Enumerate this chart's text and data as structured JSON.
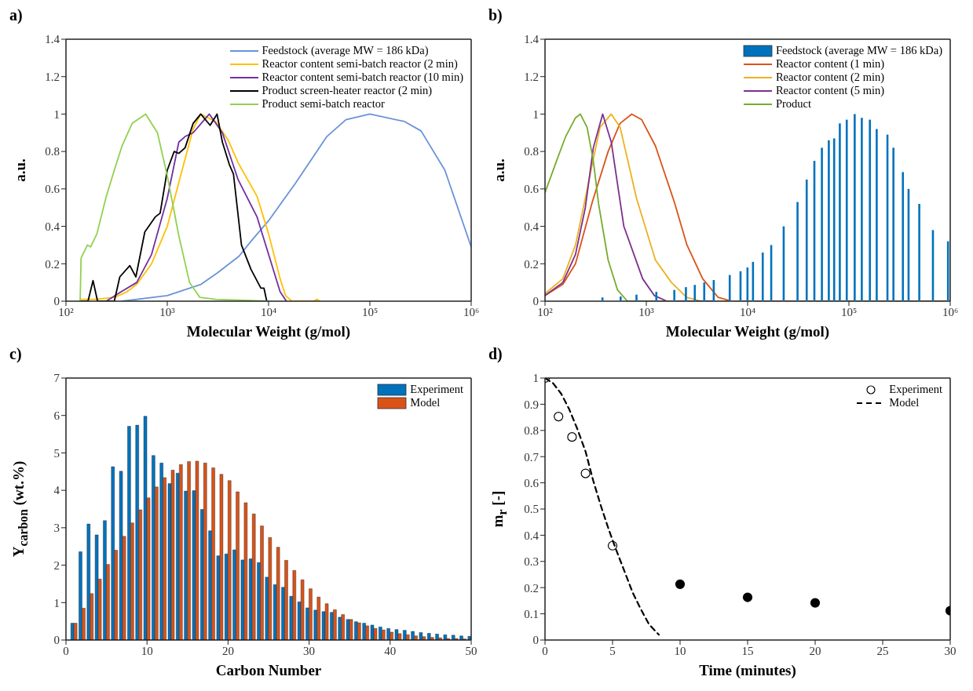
{
  "chart_data": [
    {
      "type": "line",
      "title": "a)",
      "xlabel": "Molecular Weight (g/mol)",
      "ylabel": "a.u.",
      "log": "x",
      "xlim": [
        100,
        1000000
      ],
      "xticks": [
        {
          "value": 100,
          "label": "10²"
        },
        {
          "value": 1000,
          "label": "10³"
        },
        {
          "value": 10000,
          "label": "10⁴"
        },
        {
          "value": 100000,
          "label": "10⁵"
        },
        {
          "value": 1000000,
          "label": "10⁶"
        }
      ],
      "ylim": [
        0,
        1.4
      ],
      "yticks": [
        0,
        0.2,
        0.4,
        0.6,
        0.8,
        1,
        1.2,
        1.4
      ],
      "legend": "top right",
      "series": [
        {
          "name": "Feedstock (average MW = 186 kDa)",
          "color": "#6a93d8",
          "x": [
            360,
            1000,
            2150,
            3100,
            5100,
            6700,
            10000,
            18400,
            37600,
            58000,
            100000,
            220000,
            320000,
            550000,
            1000000
          ],
          "values": [
            0,
            0.03,
            0.09,
            0.15,
            0.24,
            0.32,
            0.43,
            0.63,
            0.88,
            0.97,
            1.0,
            0.96,
            0.91,
            0.7,
            0.29
          ]
        },
        {
          "name": "Reactor content semi-batch reactor (2 min)",
          "color": "#ffc000",
          "x": [
            140,
            200,
            300,
            400,
            500,
            700,
            1000,
            1400,
            1800,
            2140,
            3000,
            4000,
            5000,
            7700,
            10000,
            13000,
            14700,
            17000,
            28000,
            30000,
            32000
          ],
          "values": [
            0.01,
            0.01,
            0.02,
            0.05,
            0.09,
            0.2,
            0.4,
            0.7,
            0.92,
            1.0,
            0.96,
            0.86,
            0.74,
            0.56,
            0.36,
            0.12,
            0.03,
            0,
            0,
            0.01,
            0
          ]
        },
        {
          "name": "Reactor content semi-batch reactor (10 min)",
          "color": "#7030a0",
          "x": [
            250,
            350,
            500,
            700,
            1000,
            1300,
            1500,
            1800,
            2600,
            3500,
            5000,
            7700,
            10000,
            13000,
            15000
          ],
          "values": [
            0,
            0.05,
            0.1,
            0.25,
            0.55,
            0.85,
            0.88,
            0.9,
            1.0,
            0.9,
            0.65,
            0.45,
            0.25,
            0.05,
            0
          ]
        },
        {
          "name": "Product screen-heater reactor (2 min)",
          "color": "#000000",
          "x": [
            140,
            165,
            185,
            205,
            300,
            340,
            427,
            490,
            600,
            760,
            850,
            1000,
            1170,
            1300,
            1500,
            1800,
            2140,
            2650,
            3100,
            3500,
            4100,
            4500,
            5400,
            6700,
            8400,
            9000,
            9600
          ],
          "values": [
            0,
            0,
            0.11,
            0,
            0,
            0.13,
            0.19,
            0.13,
            0.37,
            0.45,
            0.47,
            0.7,
            0.8,
            0.79,
            0.82,
            0.95,
            1.0,
            0.94,
            1.0,
            0.85,
            0.73,
            0.68,
            0.3,
            0.17,
            0.07,
            0.07,
            0
          ]
        },
        {
          "name": "Product semi-batch reactor",
          "color": "#92d050",
          "x": [
            138,
            141,
            150,
            163,
            175,
            202,
            250,
            300,
            358,
            450,
            612,
            800,
            1000,
            1300,
            1660,
            2100,
            3000,
            10000
          ],
          "values": [
            0,
            0.23,
            0.26,
            0.3,
            0.29,
            0.36,
            0.56,
            0.7,
            0.83,
            0.95,
            1.0,
            0.9,
            0.67,
            0.35,
            0.1,
            0.02,
            0.01,
            0
          ]
        }
      ]
    },
    {
      "type": "line",
      "title": "b)",
      "xlabel": "Molecular Weight (g/mol)",
      "ylabel": "a.u.",
      "log": "x",
      "xlim": [
        100,
        1000000
      ],
      "xticks": [
        {
          "value": 100,
          "label": "10²"
        },
        {
          "value": 1000,
          "label": "10³"
        },
        {
          "value": 10000,
          "label": "10⁴"
        },
        {
          "value": 100000,
          "label": "10⁵"
        },
        {
          "value": 1000000,
          "label": "10⁶"
        }
      ],
      "ylim": [
        0,
        1.4
      ],
      "yticks": [
        0,
        0.2,
        0.4,
        0.6,
        0.8,
        1,
        1.2,
        1.4
      ],
      "legend": "top right",
      "series": [
        {
          "name": "Feedstock (average MW = 186 kDa)",
          "type": "bar",
          "color": "#0072bd",
          "x": [
            369,
            558,
            800,
            1256,
            1890,
            2460,
            3010,
            3730,
            4630,
            6660,
            8510,
            9970,
            11300,
            14100,
            17100,
            22700,
            31100,
            38300,
            45600,
            54100,
            63300,
            71500,
            81300,
            95200,
            114000,
            134000,
            161000,
            188000,
            240000,
            275000,
            341000,
            388000,
            495000,
            675000,
            951000
          ],
          "values": [
            0.02,
            0.025,
            0.035,
            0.05,
            0.06,
            0.075,
            0.087,
            0.1,
            0.113,
            0.14,
            0.16,
            0.18,
            0.21,
            0.26,
            0.3,
            0.4,
            0.53,
            0.65,
            0.75,
            0.82,
            0.86,
            0.87,
            0.95,
            0.97,
            1.0,
            0.98,
            0.97,
            0.92,
            0.89,
            0.82,
            0.69,
            0.6,
            0.52,
            0.38,
            0.32
          ]
        },
        {
          "name": "Reactor content (1 min)",
          "color": "#d95319",
          "x": [
            100,
            150,
            200,
            293,
            420,
            550,
            718,
            900,
            1230,
            1890,
            2520,
            3600,
            5130,
            7000,
            1000000
          ],
          "values": [
            0.03,
            0.09,
            0.2,
            0.53,
            0.8,
            0.95,
            1.0,
            0.97,
            0.83,
            0.53,
            0.3,
            0.12,
            0.02,
            0,
            0
          ]
        },
        {
          "name": "Reactor content (2 min)",
          "color": "#edb120",
          "x": [
            100,
            150,
            200,
            250,
            300,
            350,
            451,
            551,
            800,
            1230,
            1770,
            2500,
            3500,
            8000
          ],
          "values": [
            0.04,
            0.12,
            0.3,
            0.55,
            0.76,
            0.93,
            1.0,
            0.93,
            0.55,
            0.22,
            0.1,
            0.02,
            0,
            0
          ]
        },
        {
          "name": "Reactor content (5 min)",
          "color": "#7e2f8e",
          "x": [
            100,
            150,
            200,
            250,
            300,
            371,
            451,
            600,
            920,
            1200,
            1600,
            4700
          ],
          "values": [
            0.03,
            0.1,
            0.25,
            0.5,
            0.82,
            1.0,
            0.85,
            0.4,
            0.12,
            0.03,
            0,
            0
          ]
        },
        {
          "name": "Product",
          "color": "#77ac30",
          "x": [
            100,
            130,
            160,
            200,
            223,
            260,
            300,
            338,
            420,
            520,
            650,
            2000
          ],
          "values": [
            0.58,
            0.75,
            0.88,
            0.98,
            1.0,
            0.93,
            0.75,
            0.52,
            0.22,
            0.06,
            0,
            0
          ]
        }
      ]
    },
    {
      "type": "bar",
      "title": "c)",
      "xlabel": "Carbon Number",
      "ylabel": "Y$_{carbon}$ (wt.%)",
      "x": [
        1,
        2,
        3,
        4,
        5,
        6,
        7,
        8,
        9,
        10,
        11,
        12,
        13,
        14,
        15,
        16,
        17,
        18,
        19,
        20,
        21,
        22,
        23,
        24,
        25,
        26,
        27,
        28,
        29,
        30,
        31,
        32,
        33,
        34,
        35,
        36,
        37,
        38,
        39,
        40,
        41,
        42,
        43,
        44,
        45,
        46,
        47,
        48,
        49,
        50
      ],
      "xlim": [
        0,
        50
      ],
      "xticks": [
        0,
        10,
        20,
        30,
        40,
        50
      ],
      "ylim": [
        0,
        7
      ],
      "yticks": [
        0,
        1,
        2,
        3,
        4,
        5,
        6,
        7
      ],
      "legend": "top right",
      "series": [
        {
          "name": "Experiment",
          "color": "#0072bd",
          "values": [
            0.45,
            2.36,
            3.1,
            2.81,
            3.19,
            4.63,
            4.51,
            5.71,
            5.74,
            5.98,
            4.93,
            4.73,
            4.18,
            4.46,
            3.98,
            3.99,
            3.49,
            2.92,
            2.25,
            2.3,
            2.41,
            2.14,
            2.17,
            2.07,
            1.68,
            1.48,
            1.41,
            1.17,
            1.02,
            0.86,
            0.8,
            0.76,
            0.74,
            0.61,
            0.55,
            0.49,
            0.45,
            0.4,
            0.35,
            0.31,
            0.28,
            0.26,
            0.23,
            0.2,
            0.18,
            0.16,
            0.14,
            0.13,
            0.11,
            0.1
          ]
        },
        {
          "name": "Model",
          "color": "#d95319",
          "values": [
            0.45,
            0.85,
            1.24,
            1.63,
            2.02,
            2.4,
            2.77,
            3.13,
            3.48,
            3.8,
            4.09,
            4.34,
            4.54,
            4.69,
            4.77,
            4.78,
            4.73,
            4.6,
            4.43,
            4.26,
            3.96,
            3.67,
            3.37,
            3.05,
            2.74,
            2.48,
            2.13,
            1.86,
            1.61,
            1.37,
            1.15,
            0.97,
            0.81,
            0.68,
            0.55,
            0.46,
            0.38,
            0.31,
            0.27,
            0.21,
            0.17,
            0.14,
            0.11,
            0.09,
            0.07,
            0.06,
            0.04,
            0.04,
            0.03,
            0.02
          ]
        }
      ]
    },
    {
      "type": "scatter",
      "title": "d)",
      "xlabel": "Time (minutes)",
      "ylabel": "m$_{r}$ [-]",
      "xlim": [
        0,
        30
      ],
      "xticks": [
        0,
        5,
        10,
        15,
        20,
        25,
        30
      ],
      "ylim": [
        0,
        1
      ],
      "yticks": [
        0,
        0.1,
        0.2,
        0.3,
        0.4,
        0.5,
        0.6,
        0.7,
        0.8,
        0.9,
        1
      ],
      "legend": "top right",
      "series": [
        {
          "name": "Experiment",
          "marker": "circle",
          "color": "#000000",
          "x": [
            0,
            1,
            2,
            3,
            5
          ],
          "values": [
            1.0,
            0.853,
            0.775,
            0.636,
            0.36
          ]
        },
        {
          "name": "Model",
          "type": "line",
          "line_style": "dashed",
          "color": "#000000",
          "x": [
            0,
            0.6,
            1.2,
            1.8,
            2.4,
            3,
            3.56,
            4.15,
            4.73,
            5.3,
            5.9,
            6.5,
            7.07,
            7.7,
            8.43
          ],
          "values": [
            1.0,
            0.98,
            0.94,
            0.88,
            0.805,
            0.72,
            0.61,
            0.51,
            0.42,
            0.34,
            0.26,
            0.18,
            0.12,
            0.06,
            0.02
          ]
        },
        {
          "marker": "circle",
          "color": "#000000",
          "x": [
            10,
            15,
            20,
            30
          ],
          "values": [
            0.213,
            0.163,
            0.142,
            0.112
          ]
        }
      ]
    }
  ]
}
